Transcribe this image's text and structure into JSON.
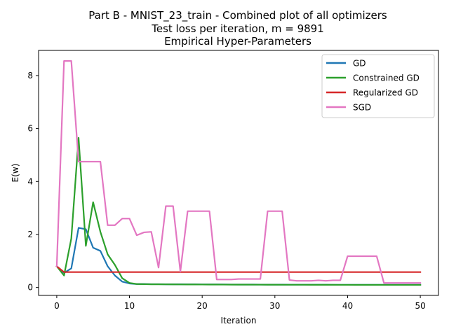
{
  "chart_data": {
    "type": "line",
    "title": "Part B - MNIST_23_train - Combined plot of all optimizers",
    "subtitle": "Test loss per iteration,  m =  9891",
    "subtitle2": "Empirical Hyper-Parameters",
    "xlabel": "Iteration",
    "ylabel": "E(w)",
    "xlim": [
      -2.5,
      52.5
    ],
    "ylim": [
      -0.3,
      8.95
    ],
    "xticks": [
      0,
      10,
      20,
      30,
      40,
      50
    ],
    "yticks": [
      0,
      2,
      4,
      6,
      8
    ],
    "legend_position": "top-right",
    "x": [
      0,
      1,
      2,
      3,
      4,
      5,
      6,
      7,
      8,
      9,
      10,
      11,
      12,
      13,
      14,
      15,
      16,
      17,
      18,
      19,
      20,
      21,
      22,
      23,
      24,
      25,
      26,
      27,
      28,
      29,
      30,
      31,
      32,
      33,
      34,
      35,
      36,
      37,
      38,
      39,
      40,
      41,
      42,
      43,
      44,
      45,
      46,
      47,
      48,
      49,
      50
    ],
    "series": [
      {
        "name": "GD",
        "color": "#1f77b4",
        "values": [
          0.8,
          0.55,
          0.72,
          2.25,
          2.2,
          1.5,
          1.38,
          0.8,
          0.45,
          0.22,
          0.15,
          0.13,
          0.13,
          0.125,
          0.125,
          0.12,
          0.12,
          0.12,
          0.118,
          0.116,
          0.115,
          0.114,
          0.113,
          0.112,
          0.111,
          0.11,
          0.11,
          0.109,
          0.108,
          0.107,
          0.107,
          0.106,
          0.105,
          0.105,
          0.104,
          0.104,
          0.103,
          0.103,
          0.102,
          0.102,
          0.101,
          0.101,
          0.1,
          0.1,
          0.1,
          0.1,
          0.1,
          0.1,
          0.1,
          0.1,
          0.1
        ]
      },
      {
        "name": "Constrained GD",
        "color": "#2ca02c",
        "values": [
          0.8,
          0.45,
          1.85,
          5.65,
          1.57,
          3.22,
          2.1,
          1.25,
          0.85,
          0.35,
          0.17,
          0.13,
          0.125,
          0.12,
          0.12,
          0.118,
          0.116,
          0.115,
          0.113,
          0.112,
          0.111,
          0.11,
          0.109,
          0.108,
          0.107,
          0.106,
          0.106,
          0.105,
          0.104,
          0.103,
          0.103,
          0.102,
          0.102,
          0.101,
          0.101,
          0.1,
          0.1,
          0.099,
          0.099,
          0.098,
          0.098,
          0.097,
          0.097,
          0.096,
          0.096,
          0.096,
          0.095,
          0.095,
          0.095,
          0.095,
          0.095
        ]
      },
      {
        "name": "Regularized GD",
        "color": "#d62728",
        "values": [
          0.8,
          0.58,
          0.58,
          0.58,
          0.58,
          0.58,
          0.58,
          0.58,
          0.58,
          0.58,
          0.58,
          0.58,
          0.58,
          0.58,
          0.58,
          0.58,
          0.58,
          0.58,
          0.58,
          0.58,
          0.58,
          0.58,
          0.58,
          0.58,
          0.58,
          0.58,
          0.58,
          0.58,
          0.58,
          0.58,
          0.58,
          0.58,
          0.58,
          0.58,
          0.58,
          0.58,
          0.58,
          0.58,
          0.58,
          0.58,
          0.58,
          0.58,
          0.58,
          0.58,
          0.58,
          0.58,
          0.58,
          0.58,
          0.58,
          0.58,
          0.58
        ]
      },
      {
        "name": "SGD",
        "color": "#e377c2",
        "values": [
          0.8,
          8.55,
          8.55,
          4.75,
          4.75,
          4.75,
          4.75,
          2.35,
          2.35,
          2.6,
          2.6,
          1.97,
          2.08,
          2.1,
          0.75,
          3.07,
          3.07,
          0.6,
          2.88,
          2.88,
          2.88,
          2.88,
          0.3,
          0.3,
          0.3,
          0.32,
          0.32,
          0.32,
          0.32,
          2.88,
          2.88,
          2.88,
          0.28,
          0.25,
          0.25,
          0.25,
          0.27,
          0.25,
          0.27,
          0.27,
          1.18,
          1.18,
          1.18,
          1.18,
          1.18,
          0.17,
          0.17,
          0.17,
          0.17,
          0.17,
          0.17
        ]
      }
    ]
  }
}
